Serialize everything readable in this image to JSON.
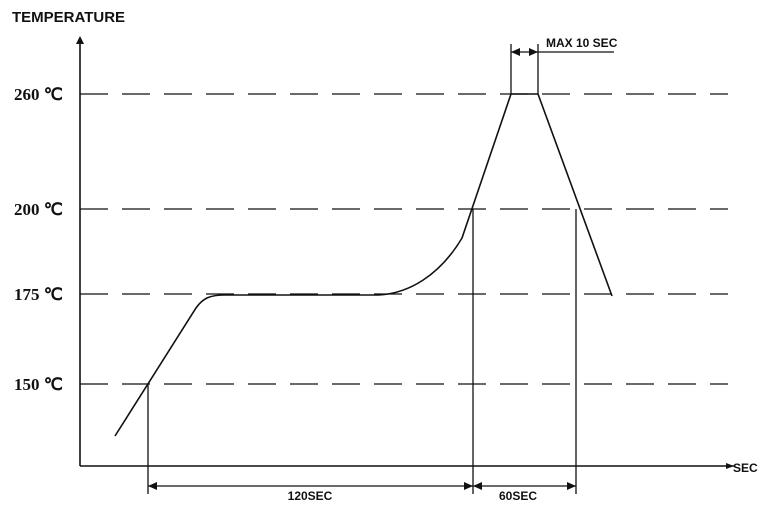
{
  "diagram": {
    "y_axis_title": "TEMPERATURE",
    "x_axis_title": "SEC",
    "levels": [
      {
        "label": "260 ℃"
      },
      {
        "label": "200 ℃"
      },
      {
        "label": "175 ℃"
      },
      {
        "label": "150 ℃"
      }
    ],
    "dimensions": {
      "max_peak": "MAX 10 SEC",
      "soak": "120SEC",
      "reflow": "60SEC"
    },
    "colors": {
      "line": "#111111",
      "background": "#ffffff"
    }
  }
}
